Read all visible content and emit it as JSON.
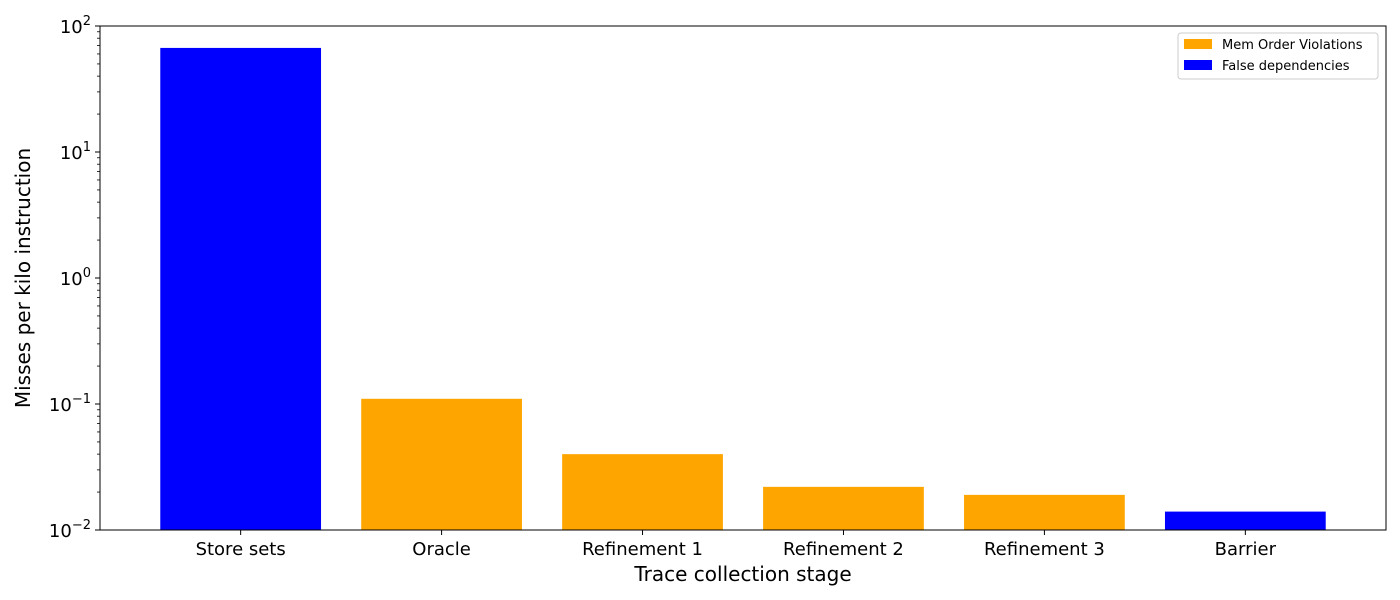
{
  "chart_data": {
    "type": "bar",
    "categories": [
      "Store sets",
      "Oracle",
      "Refinement 1",
      "Refinement 2",
      "Refinement 3",
      "Barrier"
    ],
    "values": [
      67,
      0.11,
      0.04,
      0.022,
      0.019,
      0.014
    ],
    "bar_series": [
      "False dependencies",
      "Mem Order Violations",
      "Mem Order Violations",
      "Mem Order Violations",
      "Mem Order Violations",
      "False dependencies"
    ],
    "series": [
      {
        "name": "Mem Order Violations",
        "color": "#FFA500"
      },
      {
        "name": "False dependencies",
        "color": "#0000FF"
      }
    ],
    "xlabel": "Trace collection stage",
    "ylabel": "Misses per kilo instruction",
    "yscale": "log",
    "ylim": [
      0.01,
      100
    ],
    "yticks": [
      {
        "base": "10",
        "exp": "−2"
      },
      {
        "base": "10",
        "exp": "−1"
      },
      {
        "base": "10",
        "exp": "0"
      },
      {
        "base": "10",
        "exp": "1"
      },
      {
        "base": "10",
        "exp": "2"
      }
    ],
    "legend_position": "top-right",
    "grid": false
  }
}
